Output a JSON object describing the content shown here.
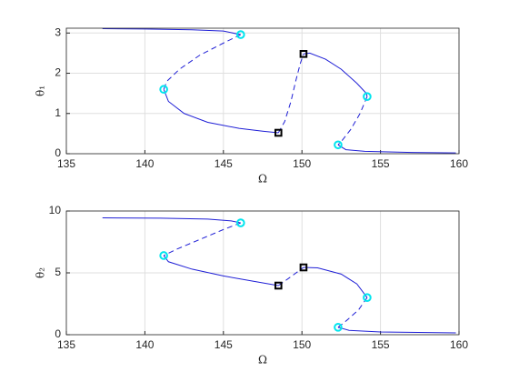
{
  "chart_data": [
    {
      "type": "line",
      "xlabel": "Ω",
      "ylabel": "θ₁",
      "xlim": [
        135,
        160
      ],
      "ylim": [
        0,
        3.12
      ],
      "xticks": [
        135,
        140,
        145,
        150,
        155,
        160
      ],
      "yticks": [
        0,
        1,
        2,
        3
      ],
      "grid": true,
      "series": [
        {
          "color": "#1f1fd6",
          "line": "solid",
          "x": [
            137.3,
            140,
            143,
            145,
            146.1
          ],
          "values": [
            3.11,
            3.1,
            3.08,
            3.05,
            2.96
          ]
        },
        {
          "color": "#1f1fd6",
          "line": "dashed",
          "x": [
            146.1,
            145,
            143.5,
            142.2,
            141.4,
            141.2
          ],
          "values": [
            2.96,
            2.75,
            2.45,
            2.1,
            1.8,
            1.6
          ]
        },
        {
          "color": "#1f1fd6",
          "line": "solid",
          "x": [
            141.2,
            141.5,
            142.5,
            144,
            146,
            147.5,
            148.5
          ],
          "values": [
            1.6,
            1.3,
            1.0,
            0.78,
            0.63,
            0.56,
            0.52
          ]
        },
        {
          "color": "#1f1fd6",
          "line": "dashed",
          "x": [
            148.5,
            148.9,
            149.3,
            149.6,
            149.9,
            150.1
          ],
          "values": [
            0.52,
            0.8,
            1.3,
            1.8,
            2.25,
            2.48
          ]
        },
        {
          "color": "#1f1fd6",
          "line": "solid",
          "x": [
            150.1,
            150.5,
            151.5,
            152.5,
            153.5,
            154.1,
            154.15
          ],
          "values": [
            2.48,
            2.5,
            2.35,
            2.1,
            1.75,
            1.5,
            1.42
          ]
        },
        {
          "color": "#1f1fd6",
          "line": "dashed",
          "x": [
            154.15,
            153.7,
            153.1,
            152.5,
            152.3
          ],
          "values": [
            1.42,
            1.0,
            0.6,
            0.3,
            0.22
          ]
        },
        {
          "color": "#1f1fd6",
          "line": "solid",
          "x": [
            152.3,
            152.8,
            154,
            157,
            159.8
          ],
          "values": [
            0.22,
            0.1,
            0.06,
            0.03,
            0.02
          ]
        },
        {
          "color": "#00e5ee",
          "line": "none",
          "marker": "circle",
          "x": [
            146.1,
            141.2,
            154.15,
            152.3
          ],
          "values": [
            2.96,
            1.6,
            1.42,
            0.22
          ]
        },
        {
          "color": "#000000",
          "line": "none",
          "marker": "square",
          "x": [
            148.5,
            150.1
          ],
          "values": [
            0.52,
            2.48
          ]
        }
      ]
    },
    {
      "type": "line",
      "xlabel": "Ω",
      "ylabel": "θ₂",
      "xlim": [
        135,
        160
      ],
      "ylim": [
        0,
        10
      ],
      "xticks": [
        135,
        140,
        145,
        150,
        155,
        160
      ],
      "yticks": [
        0,
        5,
        10
      ],
      "grid": true,
      "series": [
        {
          "color": "#1f1fd6",
          "line": "solid",
          "x": [
            137.3,
            141,
            144,
            145.5,
            146.1
          ],
          "values": [
            9.45,
            9.42,
            9.35,
            9.2,
            9.04
          ]
        },
        {
          "color": "#1f1fd6",
          "line": "dashed",
          "x": [
            146.1,
            145,
            143.5,
            142,
            141.2
          ],
          "values": [
            9.04,
            8.5,
            7.7,
            6.9,
            6.4
          ]
        },
        {
          "color": "#1f1fd6",
          "line": "solid",
          "x": [
            141.2,
            141.5,
            143,
            145,
            147,
            148.5
          ],
          "values": [
            6.4,
            5.9,
            5.3,
            4.75,
            4.3,
            3.97
          ]
        },
        {
          "color": "#1f1fd6",
          "line": "dashed",
          "x": [
            148.5,
            149.2,
            150.1
          ],
          "values": [
            3.97,
            4.6,
            5.44
          ]
        },
        {
          "color": "#1f1fd6",
          "line": "solid",
          "x": [
            150.1,
            151,
            152.5,
            153.5,
            154.15
          ],
          "values": [
            5.44,
            5.4,
            4.9,
            4.1,
            3.0
          ]
        },
        {
          "color": "#1f1fd6",
          "line": "dashed",
          "x": [
            154.15,
            153.6,
            152.8,
            152.3
          ],
          "values": [
            3.0,
            2.0,
            1.1,
            0.6
          ]
        },
        {
          "color": "#1f1fd6",
          "line": "solid",
          "x": [
            152.3,
            153,
            155,
            159.8
          ],
          "values": [
            0.6,
            0.35,
            0.22,
            0.15
          ]
        },
        {
          "color": "#00e5ee",
          "line": "none",
          "marker": "circle",
          "x": [
            146.1,
            141.2,
            154.15,
            152.3
          ],
          "values": [
            9.04,
            6.4,
            3.0,
            0.6
          ]
        },
        {
          "color": "#000000",
          "line": "none",
          "marker": "square",
          "x": [
            148.5,
            150.1
          ],
          "values": [
            3.97,
            5.44
          ]
        }
      ]
    }
  ]
}
